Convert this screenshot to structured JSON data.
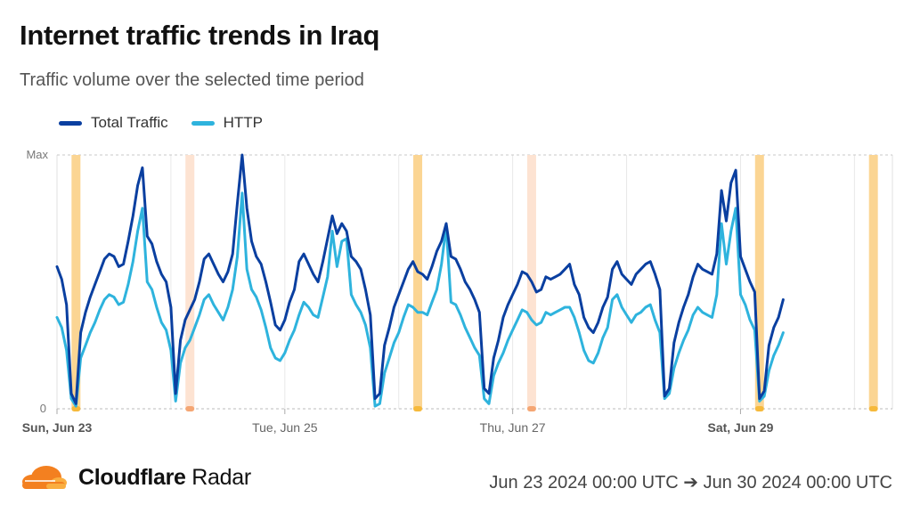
{
  "header": {
    "title": "Internet traffic trends in Iraq",
    "subtitle": "Traffic volume over the selected time period"
  },
  "legend": [
    {
      "label": "Total Traffic",
      "color": "#0a3fa0"
    },
    {
      "label": "HTTP",
      "color": "#2eb3dd"
    }
  ],
  "footer": {
    "brand_bold": "Cloudflare",
    "brand_rest": " Radar",
    "date_range": "Jun 23 2024 00:00 UTC ➔ Jun 30 2024 00:00 UTC"
  },
  "colors": {
    "total": "#0a3fa0",
    "http": "#2eb3dd",
    "outage": "#fbd38d",
    "outage_light": "#fde2d0",
    "orange": "#f38020"
  },
  "chart_data": {
    "type": "line",
    "y_tick_labels": [
      "Max",
      "0"
    ],
    "ylim": [
      0,
      100
    ],
    "x_tick_labels": [
      {
        "x": 0,
        "label": "Sun, Jun 23",
        "bold": true
      },
      {
        "x": 48,
        "label": "Tue, Jun 25",
        "bold": false
      },
      {
        "x": 96,
        "label": "Thu, Jun 27",
        "bold": false
      },
      {
        "x": 144,
        "label": "Sat, Jun 29",
        "bold": true
      }
    ],
    "x_unit": "hours since Jun 23 2024 00:00 UTC",
    "xlim": [
      0,
      176
    ],
    "day_lines": [
      24,
      72,
      120,
      168
    ],
    "outage_periods": [
      {
        "x": 4,
        "strength": "strong"
      },
      {
        "x": 28,
        "strength": "light"
      },
      {
        "x": 76,
        "strength": "strong"
      },
      {
        "x": 100,
        "strength": "light"
      },
      {
        "x": 148,
        "strength": "strong"
      },
      {
        "x": 172,
        "strength": "strong"
      }
    ],
    "series": [
      {
        "name": "Total Traffic",
        "color": "#0a3fa0",
        "points": [
          [
            0,
            56
          ],
          [
            1,
            51
          ],
          [
            2,
            41
          ],
          [
            3,
            6
          ],
          [
            4,
            2
          ],
          [
            5,
            30
          ],
          [
            6,
            38
          ],
          [
            7,
            44
          ],
          [
            8,
            49
          ],
          [
            9,
            54
          ],
          [
            10,
            59
          ],
          [
            11,
            61
          ],
          [
            12,
            60
          ],
          [
            13,
            56
          ],
          [
            14,
            57
          ],
          [
            15,
            66
          ],
          [
            16,
            76
          ],
          [
            17,
            88
          ],
          [
            18,
            95
          ],
          [
            19,
            68
          ],
          [
            20,
            65
          ],
          [
            21,
            58
          ],
          [
            22,
            53
          ],
          [
            23,
            50
          ],
          [
            24,
            40
          ],
          [
            25,
            6
          ],
          [
            26,
            27
          ],
          [
            27,
            35
          ],
          [
            28,
            39
          ],
          [
            29,
            43
          ],
          [
            30,
            50
          ],
          [
            31,
            59
          ],
          [
            32,
            61
          ],
          [
            33,
            57
          ],
          [
            34,
            53
          ],
          [
            35,
            50
          ],
          [
            36,
            54
          ],
          [
            37,
            61
          ],
          [
            38,
            81
          ],
          [
            39,
            100
          ],
          [
            40,
            79
          ],
          [
            41,
            66
          ],
          [
            42,
            60
          ],
          [
            43,
            57
          ],
          [
            44,
            50
          ],
          [
            45,
            42
          ],
          [
            46,
            33
          ],
          [
            47,
            31
          ],
          [
            48,
            35
          ],
          [
            49,
            42
          ],
          [
            50,
            47
          ],
          [
            51,
            58
          ],
          [
            52,
            61
          ],
          [
            53,
            57
          ],
          [
            54,
            53
          ],
          [
            55,
            50
          ],
          [
            56,
            58
          ],
          [
            57,
            67
          ],
          [
            58,
            76
          ],
          [
            59,
            69
          ],
          [
            60,
            73
          ],
          [
            61,
            70
          ],
          [
            62,
            60
          ],
          [
            63,
            58
          ],
          [
            64,
            55
          ],
          [
            65,
            47
          ],
          [
            66,
            37
          ],
          [
            67,
            4
          ],
          [
            68,
            6
          ],
          [
            69,
            25
          ],
          [
            70,
            32
          ],
          [
            71,
            40
          ],
          [
            72,
            45
          ],
          [
            73,
            50
          ],
          [
            74,
            55
          ],
          [
            75,
            58
          ],
          [
            76,
            54
          ],
          [
            77,
            53
          ],
          [
            78,
            51
          ],
          [
            79,
            56
          ],
          [
            80,
            62
          ],
          [
            81,
            66
          ],
          [
            82,
            73
          ],
          [
            83,
            60
          ],
          [
            84,
            59
          ],
          [
            85,
            55
          ],
          [
            86,
            50
          ],
          [
            87,
            47
          ],
          [
            88,
            43
          ],
          [
            89,
            38
          ],
          [
            90,
            8
          ],
          [
            91,
            6
          ],
          [
            92,
            20
          ],
          [
            93,
            27
          ],
          [
            94,
            36
          ],
          [
            95,
            41
          ],
          [
            96,
            45
          ],
          [
            97,
            49
          ],
          [
            98,
            54
          ],
          [
            99,
            53
          ],
          [
            100,
            50
          ],
          [
            101,
            46
          ],
          [
            102,
            47
          ],
          [
            103,
            52
          ],
          [
            104,
            51
          ],
          [
            105,
            52
          ],
          [
            106,
            53
          ],
          [
            107,
            55
          ],
          [
            108,
            57
          ],
          [
            109,
            49
          ],
          [
            110,
            45
          ],
          [
            111,
            36
          ],
          [
            112,
            32
          ],
          [
            113,
            30
          ],
          [
            114,
            34
          ],
          [
            115,
            40
          ],
          [
            116,
            44
          ],
          [
            117,
            55
          ],
          [
            118,
            58
          ],
          [
            119,
            53
          ],
          [
            120,
            51
          ],
          [
            121,
            49
          ],
          [
            122,
            53
          ],
          [
            123,
            55
          ],
          [
            124,
            57
          ],
          [
            125,
            58
          ],
          [
            126,
            53
          ],
          [
            127,
            47
          ],
          [
            128,
            5
          ],
          [
            129,
            8
          ],
          [
            130,
            26
          ],
          [
            131,
            34
          ],
          [
            132,
            40
          ],
          [
            133,
            45
          ],
          [
            134,
            52
          ],
          [
            135,
            57
          ],
          [
            136,
            55
          ],
          [
            137,
            54
          ],
          [
            138,
            53
          ],
          [
            139,
            61
          ],
          [
            140,
            86
          ],
          [
            141,
            74
          ],
          [
            142,
            89
          ],
          [
            143,
            94
          ],
          [
            144,
            60
          ],
          [
            145,
            55
          ],
          [
            146,
            50
          ],
          [
            147,
            46
          ],
          [
            148,
            4
          ],
          [
            149,
            7
          ],
          [
            150,
            25
          ],
          [
            151,
            32
          ],
          [
            152,
            36
          ],
          [
            153,
            43
          ]
        ]
      },
      {
        "name": "HTTP",
        "color": "#2eb3dd",
        "points": [
          [
            0,
            36
          ],
          [
            1,
            32
          ],
          [
            2,
            23
          ],
          [
            3,
            4
          ],
          [
            4,
            1
          ],
          [
            5,
            20
          ],
          [
            6,
            25
          ],
          [
            7,
            30
          ],
          [
            8,
            34
          ],
          [
            9,
            39
          ],
          [
            10,
            43
          ],
          [
            11,
            45
          ],
          [
            12,
            44
          ],
          [
            13,
            41
          ],
          [
            14,
            42
          ],
          [
            15,
            49
          ],
          [
            16,
            58
          ],
          [
            17,
            70
          ],
          [
            18,
            79
          ],
          [
            19,
            50
          ],
          [
            20,
            47
          ],
          [
            21,
            40
          ],
          [
            22,
            34
          ],
          [
            23,
            31
          ],
          [
            24,
            23
          ],
          [
            25,
            3
          ],
          [
            26,
            18
          ],
          [
            27,
            24
          ],
          [
            28,
            27
          ],
          [
            29,
            32
          ],
          [
            30,
            37
          ],
          [
            31,
            43
          ],
          [
            32,
            45
          ],
          [
            33,
            41
          ],
          [
            34,
            38
          ],
          [
            35,
            35
          ],
          [
            36,
            40
          ],
          [
            37,
            47
          ],
          [
            38,
            60
          ],
          [
            39,
            85
          ],
          [
            40,
            55
          ],
          [
            41,
            47
          ],
          [
            42,
            44
          ],
          [
            43,
            39
          ],
          [
            44,
            32
          ],
          [
            45,
            24
          ],
          [
            46,
            20
          ],
          [
            47,
            19
          ],
          [
            48,
            22
          ],
          [
            49,
            27
          ],
          [
            50,
            31
          ],
          [
            51,
            37
          ],
          [
            52,
            42
          ],
          [
            53,
            40
          ],
          [
            54,
            37
          ],
          [
            55,
            36
          ],
          [
            56,
            44
          ],
          [
            57,
            52
          ],
          [
            58,
            70
          ],
          [
            59,
            56
          ],
          [
            60,
            66
          ],
          [
            61,
            67
          ],
          [
            62,
            45
          ],
          [
            63,
            41
          ],
          [
            64,
            38
          ],
          [
            65,
            33
          ],
          [
            66,
            24
          ],
          [
            67,
            1
          ],
          [
            68,
            2
          ],
          [
            69,
            14
          ],
          [
            70,
            20
          ],
          [
            71,
            26
          ],
          [
            72,
            30
          ],
          [
            73,
            36
          ],
          [
            74,
            41
          ],
          [
            75,
            40
          ],
          [
            76,
            38
          ],
          [
            77,
            38
          ],
          [
            78,
            37
          ],
          [
            79,
            42
          ],
          [
            80,
            47
          ],
          [
            81,
            57
          ],
          [
            82,
            72
          ],
          [
            83,
            42
          ],
          [
            84,
            41
          ],
          [
            85,
            37
          ],
          [
            86,
            32
          ],
          [
            87,
            28
          ],
          [
            88,
            24
          ],
          [
            89,
            21
          ],
          [
            90,
            4
          ],
          [
            91,
            2
          ],
          [
            92,
            13
          ],
          [
            93,
            18
          ],
          [
            94,
            22
          ],
          [
            95,
            27
          ],
          [
            96,
            31
          ],
          [
            97,
            35
          ],
          [
            98,
            39
          ],
          [
            99,
            38
          ],
          [
            100,
            35
          ],
          [
            101,
            33
          ],
          [
            102,
            34
          ],
          [
            103,
            38
          ],
          [
            104,
            37
          ],
          [
            105,
            38
          ],
          [
            106,
            39
          ],
          [
            107,
            40
          ],
          [
            108,
            40
          ],
          [
            109,
            36
          ],
          [
            110,
            30
          ],
          [
            111,
            23
          ],
          [
            112,
            19
          ],
          [
            113,
            18
          ],
          [
            114,
            22
          ],
          [
            115,
            28
          ],
          [
            116,
            32
          ],
          [
            117,
            43
          ],
          [
            118,
            45
          ],
          [
            119,
            40
          ],
          [
            120,
            37
          ],
          [
            121,
            34
          ],
          [
            122,
            37
          ],
          [
            123,
            38
          ],
          [
            124,
            40
          ],
          [
            125,
            41
          ],
          [
            126,
            35
          ],
          [
            127,
            30
          ],
          [
            128,
            4
          ],
          [
            129,
            6
          ],
          [
            130,
            16
          ],
          [
            131,
            22
          ],
          [
            132,
            27
          ],
          [
            133,
            31
          ],
          [
            134,
            37
          ],
          [
            135,
            40
          ],
          [
            136,
            38
          ],
          [
            137,
            37
          ],
          [
            138,
            36
          ],
          [
            139,
            45
          ],
          [
            140,
            73
          ],
          [
            141,
            57
          ],
          [
            142,
            70
          ],
          [
            143,
            79
          ],
          [
            144,
            45
          ],
          [
            145,
            41
          ],
          [
            146,
            35
          ],
          [
            147,
            31
          ],
          [
            148,
            3
          ],
          [
            149,
            5
          ],
          [
            150,
            15
          ],
          [
            151,
            21
          ],
          [
            152,
            25
          ],
          [
            153,
            30
          ]
        ]
      }
    ]
  }
}
